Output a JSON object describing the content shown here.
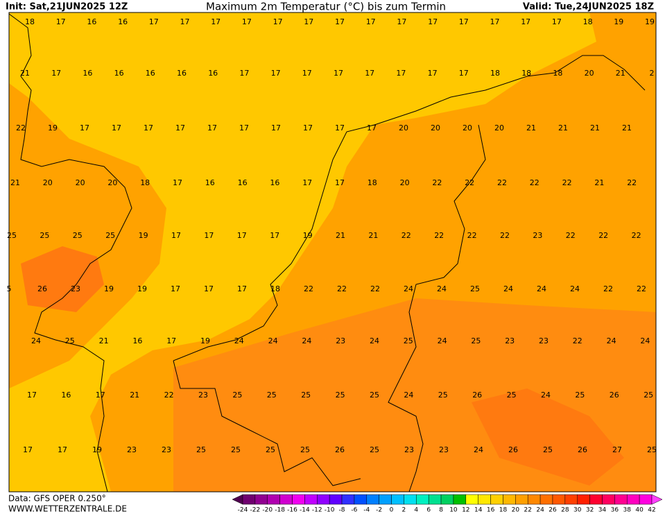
{
  "header": {
    "init": "Init: Sat,21JUN2025 12Z",
    "title": "Maximum 2m Temperatur (°C) bis zum Termin",
    "valid": "Valid: Tue,24JUN2025 18Z"
  },
  "map": {
    "rows": [
      [
        18,
        17,
        16,
        16,
        17,
        17,
        17,
        17,
        17,
        17,
        17,
        17,
        17,
        17,
        17,
        17,
        17,
        17,
        18,
        19,
        19
      ],
      [
        21,
        17,
        16,
        16,
        16,
        16,
        16,
        17,
        17,
        17,
        17,
        17,
        17,
        17,
        17,
        18,
        18,
        18,
        20,
        21,
        2
      ],
      [
        22,
        19,
        17,
        17,
        17,
        17,
        17,
        17,
        17,
        17,
        17,
        17,
        20,
        20,
        20,
        20,
        21,
        21,
        21,
        21
      ],
      [
        21,
        20,
        20,
        20,
        18,
        17,
        16,
        16,
        16,
        17,
        17,
        18,
        20,
        22,
        22,
        22,
        22,
        22,
        21,
        22
      ],
      [
        25,
        25,
        25,
        25,
        19,
        17,
        17,
        17,
        17,
        19,
        21,
        21,
        22,
        22,
        22,
        22,
        23,
        22,
        22,
        22
      ],
      [
        5,
        26,
        23,
        19,
        19,
        17,
        17,
        17,
        18,
        22,
        22,
        22,
        24,
        24,
        25,
        24,
        24,
        24,
        22,
        22
      ],
      [
        24,
        25,
        21,
        16,
        17,
        19,
        24,
        24,
        24,
        23,
        24,
        25,
        24,
        25,
        23,
        23,
        22,
        24,
        24
      ],
      [
        17,
        16,
        17,
        21,
        22,
        23,
        25,
        25,
        25,
        25,
        25,
        24,
        25,
        26,
        25,
        24,
        25,
        26,
        25
      ],
      [
        17,
        17,
        19,
        23,
        23,
        25,
        25,
        25,
        25,
        26,
        25,
        23,
        23,
        24,
        26,
        25,
        26,
        27,
        25
      ]
    ]
  },
  "footer": {
    "data": "Data: GFS OPER 0.250°",
    "site": "WWW.WETTERZENTRALE.DE"
  },
  "legend": {
    "ticks": [
      -24,
      -22,
      -20,
      -18,
      -16,
      -14,
      -12,
      -10,
      -8,
      -6,
      -4,
      -2,
      0,
      2,
      4,
      6,
      8,
      10,
      12,
      14,
      16,
      18,
      20,
      22,
      24,
      26,
      28,
      30,
      32,
      34,
      36,
      38,
      40,
      42
    ],
    "colors": [
      "#500050",
      "#700070",
      "#900090",
      "#b000b0",
      "#d000d0",
      "#f000f0",
      "#c000ff",
      "#9000ff",
      "#6000ff",
      "#3030ff",
      "#0050ff",
      "#0080ff",
      "#00a0ff",
      "#00c0ff",
      "#00e0f0",
      "#00f0c0",
      "#00e090",
      "#00d060",
      "#00c000",
      "#ffff00",
      "#ffe800",
      "#ffd000",
      "#ffb800",
      "#ffa000",
      "#ff8800",
      "#ff7000",
      "#ff5800",
      "#ff4000",
      "#ff2000",
      "#ff0030",
      "#ff0060",
      "#ff0090",
      "#ff00c0",
      "#ff00e0",
      "#ff40ff"
    ]
  }
}
